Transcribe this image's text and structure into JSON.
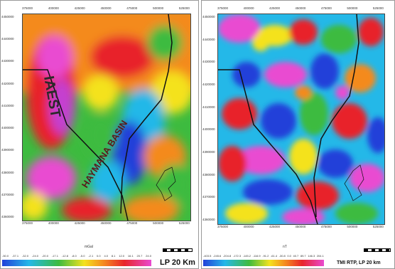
{
  "left_panel": {
    "label_iaest": "IAEST",
    "label_basin": "HAYMANA BASIN",
    "unit": "mGal",
    "caption": "LP 20 Km",
    "colorbar_ticks": [
      "-50.0",
      "-37.1",
      "-32.0",
      "-24.0",
      "-20.0",
      "-17.1",
      "-12.8",
      "-8.0",
      "-5.0",
      "-2.1",
      "0.0",
      "4.0",
      "8.1",
      "12.0",
      "16.1",
      "20.7",
      "24.0"
    ],
    "top_ticks": [
      "375000",
      "",
      "400000",
      "",
      "425000",
      "",
      "450000",
      "",
      "475000",
      "",
      "500000",
      "",
      "525000"
    ],
    "left_ticks": [
      "4450000",
      "4440000",
      "4430000",
      "4420000",
      "4410000",
      "4400000",
      "4390000",
      "4380000",
      "4370000",
      "4360000"
    ]
  },
  "right_panel": {
    "unit": "nT",
    "caption": "TMI RTP, LP 20 km",
    "colorbar_ticks": [
      "-403.5",
      "-245.6",
      "-204.8",
      "-172.3",
      "-145.2",
      "-116.9",
      "-91.2",
      "-61.4",
      "-30.8",
      "0.0",
      "40.7",
      "89.7",
      "146.3",
      "204.1"
    ],
    "top_ticks": [
      "375000",
      "",
      "400000",
      "",
      "425000",
      "",
      "450000",
      "",
      "475000",
      "",
      "500000",
      "",
      "525000"
    ],
    "left_ticks": [
      "4450000",
      "4440000",
      "4430000",
      "4420000",
      "4410000",
      "4400000",
      "4390000",
      "4380000",
      "4370000",
      "4360000"
    ]
  },
  "colors": {
    "magenta": "#e94bd1",
    "red": "#e8242b",
    "orange": "#f48a1f",
    "yellow": "#f4e21e",
    "green": "#3dbb3f",
    "cyan": "#24b8e8",
    "blue": "#2140d9"
  }
}
